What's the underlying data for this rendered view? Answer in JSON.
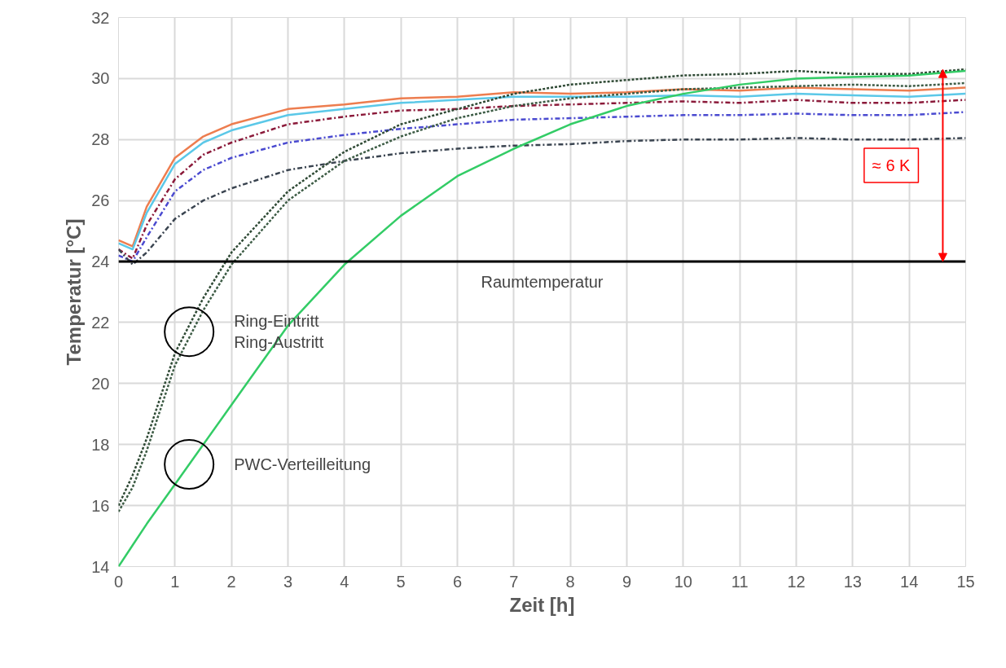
{
  "chart_data": {
    "type": "line",
    "xlabel": "Zeit [h]",
    "ylabel": "Temperatur [°C]",
    "x": [
      0,
      0.25,
      0.5,
      1,
      1.5,
      2,
      3,
      4,
      5,
      6,
      7,
      8,
      9,
      10,
      11,
      12,
      13,
      14,
      15
    ],
    "xlim": [
      0,
      15
    ],
    "xticks": [
      0,
      1,
      2,
      3,
      4,
      5,
      6,
      7,
      8,
      9,
      10,
      11,
      12,
      13,
      14,
      15
    ],
    "ylim": [
      14,
      32
    ],
    "yticks": [
      14,
      16,
      18,
      20,
      22,
      24,
      26,
      28,
      30,
      32
    ],
    "grid": true,
    "marker": "none",
    "series": [
      {
        "color": "#ed7d4f",
        "line_style": "solid",
        "values": [
          24.7,
          24.5,
          25.8,
          27.4,
          28.1,
          28.5,
          29.0,
          29.15,
          29.35,
          29.4,
          29.55,
          29.5,
          29.55,
          29.65,
          29.6,
          29.7,
          29.65,
          29.6,
          29.7
        ]
      },
      {
        "color": "#5bc8e8",
        "line_style": "solid",
        "values": [
          24.6,
          24.4,
          25.6,
          27.2,
          27.9,
          28.3,
          28.8,
          29.0,
          29.2,
          29.3,
          29.4,
          29.4,
          29.4,
          29.45,
          29.4,
          29.5,
          29.45,
          29.4,
          29.5
        ]
      },
      {
        "color": "#8b1a3a",
        "line_style": "dashed",
        "values": [
          24.4,
          24.1,
          25.2,
          26.7,
          27.5,
          27.9,
          28.5,
          28.75,
          28.95,
          29.0,
          29.1,
          29.15,
          29.2,
          29.25,
          29.2,
          29.3,
          29.2,
          29.2,
          29.3
        ]
      },
      {
        "color": "#4a4ad0",
        "line_style": "dashed",
        "values": [
          24.2,
          24.0,
          24.8,
          26.3,
          27.0,
          27.4,
          27.9,
          28.15,
          28.35,
          28.5,
          28.65,
          28.7,
          28.75,
          28.8,
          28.8,
          28.85,
          28.8,
          28.8,
          28.9
        ]
      },
      {
        "color": "#3a4450",
        "line_style": "dashed",
        "values": [
          24.4,
          23.9,
          24.3,
          25.4,
          26.0,
          26.4,
          27.0,
          27.3,
          27.55,
          27.7,
          27.8,
          27.85,
          27.95,
          28.0,
          28.0,
          28.05,
          28.0,
          28.0,
          28.05
        ]
      },
      {
        "color": "#2f4a35",
        "line_style": "dotted",
        "values": [
          16.0,
          17.0,
          18.2,
          21.0,
          22.8,
          24.3,
          26.3,
          27.6,
          28.5,
          29.0,
          29.5,
          29.8,
          29.95,
          30.1,
          30.15,
          30.25,
          30.15,
          30.15,
          30.3
        ]
      },
      {
        "color": "#3d5c45",
        "line_style": "dotted",
        "values": [
          15.8,
          16.6,
          17.8,
          20.6,
          22.4,
          23.9,
          26.0,
          27.3,
          28.1,
          28.7,
          29.1,
          29.35,
          29.5,
          29.65,
          29.7,
          29.75,
          29.8,
          29.75,
          29.85
        ]
      },
      {
        "color": "#33cc66",
        "line_style": "solid",
        "values": [
          14.0,
          14.7,
          15.4,
          16.7,
          18.0,
          19.3,
          21.9,
          23.9,
          25.5,
          26.8,
          27.7,
          28.5,
          29.1,
          29.5,
          29.8,
          30.0,
          30.05,
          30.1,
          30.25
        ]
      }
    ],
    "ref_lines": [
      {
        "axis": "y",
        "value": 24,
        "label": "Raumtemperatur",
        "color": "#000000"
      }
    ],
    "annotations": [
      {
        "text": "Ring-Eintritt\nRing-Austritt",
        "x": 1.25,
        "y": 21.7
      },
      {
        "text": "PWC-Verteilleitung",
        "x": 1.25,
        "y": 17.35
      },
      "≈ 6 K"
    ]
  }
}
